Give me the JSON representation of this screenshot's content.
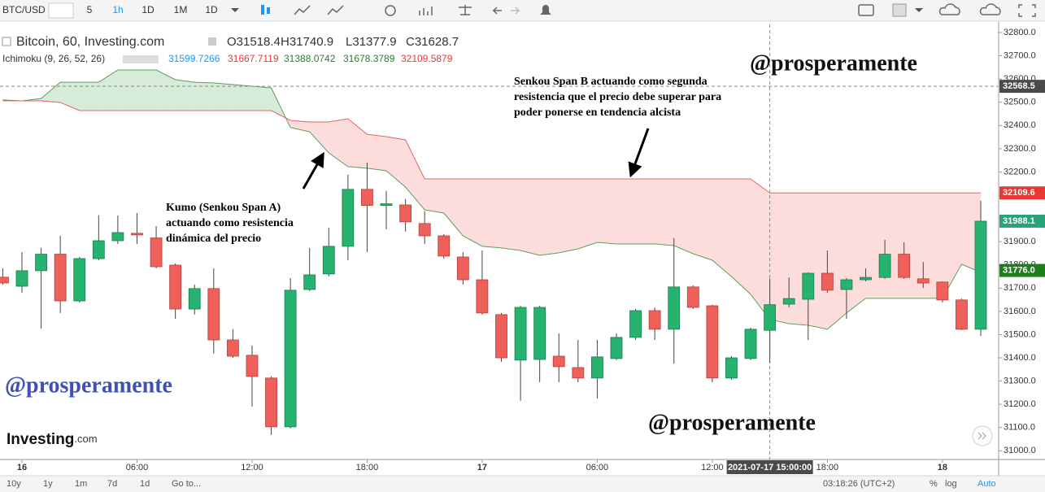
{
  "toolbar": {
    "symbol": "BTC/USD",
    "intervals": [
      "5",
      "1h",
      "1D",
      "1M",
      "1D"
    ]
  },
  "bottom_bar": {
    "ranges": [
      "10y",
      "1y",
      "1m",
      "7d",
      "1d"
    ],
    "goto": "Go to...",
    "clock": "03:18:26 (UTC+2)",
    "options": [
      "%",
      "log",
      "Auto"
    ]
  },
  "chart_data": {
    "type": "candlestick",
    "title": "Bitcoin, 60, Investing.com",
    "ohlc_legend": [
      "O31518.4",
      "H31740.9",
      "L31377.9",
      "C31628.7"
    ],
    "indicator": {
      "name": "Ichimoku (9, 26, 52, 26)",
      "values": [
        {
          "text": "31599.7266",
          "color": "#2196f3"
        },
        {
          "text": "31667.7119",
          "color": "#e53935"
        },
        {
          "text": "31388.0742",
          "color": "#2e7d32"
        },
        {
          "text": "31678.3789",
          "color": "#2e7d32"
        },
        {
          "text": "32109.5879",
          "color": "#e53935"
        }
      ]
    },
    "categories": [
      null,
      "16",
      null,
      null,
      null,
      null,
      null,
      "06:00",
      null,
      null,
      null,
      null,
      null,
      "12:00",
      null,
      null,
      null,
      null,
      null,
      "18:00",
      null,
      null,
      null,
      null,
      null,
      "17",
      null,
      null,
      null,
      null,
      null,
      "06:00",
      null,
      null,
      null,
      null,
      null,
      "12:00",
      null,
      null,
      null,
      null,
      null,
      "18:00",
      null,
      null,
      null,
      null,
      null,
      "18",
      null,
      null
    ],
    "open": [
      31747,
      31708,
      31775,
      31846,
      31645,
      31827,
      31904,
      31936,
      31916,
      31799,
      31610,
      31698,
      31477,
      31411,
      31313,
      31103,
      31694,
      31761,
      31880,
      32125,
      32056,
      32058,
      31978,
      31925,
      31834,
      31736,
      31586,
      31390,
      31393,
      31407,
      31358,
      31313,
      31397,
      31488,
      31603,
      31523,
      31705,
      31624,
      31313,
      31397,
      31518.4,
      31631,
      31652,
      31764,
      31694,
      31736,
      31746,
      31846,
      31740,
      31726,
      31649,
      31523
    ],
    "high": [
      31785,
      31855,
      31873,
      31925,
      31834,
      32013,
      32013,
      32023,
      31967,
      31806,
      31715,
      31785,
      31523,
      31453,
      31320,
      31743,
      31873,
      31960,
      32188,
      32240,
      32118,
      32083,
      32030,
      31932,
      31855,
      31862,
      31593,
      31624,
      31624,
      31505,
      31477,
      31477,
      31505,
      31610,
      31617,
      31915,
      31712,
      31628,
      31407,
      31530,
      31740.9,
      31746,
      31768,
      31862,
      31743,
      31785,
      31908,
      31897,
      31813,
      31729,
      31655,
      32076
    ],
    "low": [
      31715,
      31680,
      31526,
      31593,
      31638,
      31820,
      31890,
      31890,
      31785,
      31568,
      31586,
      31418,
      31400,
      31190,
      31068,
      31096,
      31687,
      31750,
      31820,
      31855,
      31953,
      31943,
      31890,
      31827,
      31715,
      31586,
      31383,
      31215,
      31295,
      31295,
      31295,
      31225,
      31390,
      31477,
      31477,
      31375,
      31610,
      31295,
      31306,
      31390,
      31377.9,
      31617,
      31477,
      31680,
      31568,
      31729,
      31740,
      31740,
      31701,
      31638,
      31519,
      31494
    ],
    "close": [
      31722,
      31775,
      31846,
      31645,
      31827,
      31904,
      31939,
      31929,
      31792,
      31610,
      31698,
      31477,
      31407,
      31320,
      31103,
      31691,
      31757,
      31880,
      32125,
      32056,
      32063,
      31985,
      31925,
      31838,
      31736,
      31593,
      31400,
      31617,
      31617,
      31362,
      31313,
      31404,
      31488,
      31603,
      31523,
      31705,
      31617,
      31313,
      31400,
      31523,
      31628.7,
      31655,
      31764,
      31691,
      31736,
      31746,
      31846,
      31746,
      31722,
      31649,
      31523,
      31988.1
    ],
    "up_color": "#26b36f",
    "down_color": "#f0605a",
    "senkou_a": {
      "color": "#5e9f5e",
      "values": [
        32510,
        32506,
        32516,
        32586,
        32586,
        32586,
        32639,
        32639,
        32639,
        32597,
        32586,
        32583,
        32576,
        32569,
        32562,
        32391,
        32373,
        32282,
        32223,
        32216,
        32205,
        32135,
        32037,
        32023,
        31925,
        31880,
        31873,
        31862,
        31841,
        31852,
        31869,
        31897,
        31890,
        31890,
        31890,
        31883,
        31848,
        31820,
        31750,
        31673,
        31565,
        31547,
        31540,
        31523,
        31593,
        31656,
        31656,
        31656,
        31656,
        31656,
        31803,
        31768
      ]
    },
    "senkou_b": {
      "color": "#e06666",
      "values": [
        32506,
        32506,
        32506,
        32499,
        32464,
        32464,
        32464,
        32464,
        32464,
        32464,
        32464,
        32464,
        32464,
        32464,
        32464,
        32422,
        32415,
        32415,
        32429,
        32362,
        32352,
        32338,
        32170,
        32170,
        32170,
        32170,
        32170,
        32170,
        32170,
        32170,
        32170,
        32170,
        32170,
        32170,
        32170,
        32170,
        32170,
        32170,
        32170,
        32170,
        32109.6,
        32109.6,
        32109.6,
        32109.6,
        32109.6,
        32109.6,
        32109.6,
        32109.6,
        32109.6,
        32109.6,
        32109.6,
        32109.6
      ]
    },
    "cloud_colors": {
      "bullish": "#d6ecd8",
      "bearish": "#fddcdc"
    },
    "ylim": [
      30962.5,
      32835
    ],
    "yticks": [
      {
        "value": 31000,
        "label": "31000.0"
      },
      {
        "value": 31100,
        "label": "31100.0"
      },
      {
        "value": 31200,
        "label": "31200.0"
      },
      {
        "value": 31300,
        "label": "31300.0"
      },
      {
        "value": 31400,
        "label": "31400.0"
      },
      {
        "value": 31500,
        "label": "31500.0"
      },
      {
        "value": 31600,
        "label": "31600.0"
      },
      {
        "value": 31700,
        "label": "31700.0"
      },
      {
        "value": 31800,
        "label": "31800.0"
      },
      {
        "value": 31900,
        "label": "31900.0"
      },
      {
        "value": 32000,
        "label": "32000.0"
      },
      {
        "value": 32100,
        "label": "32100.0"
      },
      {
        "value": 32200,
        "label": "32200.0"
      },
      {
        "value": 32300,
        "label": "32300.0"
      },
      {
        "value": 32400,
        "label": "32400.0"
      },
      {
        "value": 32500,
        "label": "32500.0"
      },
      {
        "value": 32600,
        "label": "32600.0"
      },
      {
        "value": 32700,
        "label": "32700.0"
      },
      {
        "value": 32800,
        "label": "32800.0"
      }
    ],
    "grid": false,
    "price_badges": [
      {
        "value": 32568.5,
        "label": "32568.5",
        "color": "#4a4a4a"
      },
      {
        "value": 32109.6,
        "label": "32109.6",
        "color": "#e53935"
      },
      {
        "value": 31988.1,
        "label": "31988.1",
        "color": "#26a37a"
      },
      {
        "value": 31776.0,
        "label": "31776.0",
        "color": "#1e7e1e"
      }
    ],
    "crosshair_time": "2021-07-17 15:00:00",
    "annotations": {
      "senkou_b_note": [
        "Senkou Span B actuando como segunda",
        "resistencia que el precio debe superar para",
        "poder ponerse en tendencia alcista"
      ],
      "kumo_note": [
        "Kumo (Senkou Span A)",
        "actuando como resistencia",
        "dinámica del precio"
      ],
      "watermarks": [
        "@prosperamente",
        "@prosperamente",
        "@prosperamente"
      ]
    },
    "logo": [
      "Investing",
      ".com"
    ]
  }
}
